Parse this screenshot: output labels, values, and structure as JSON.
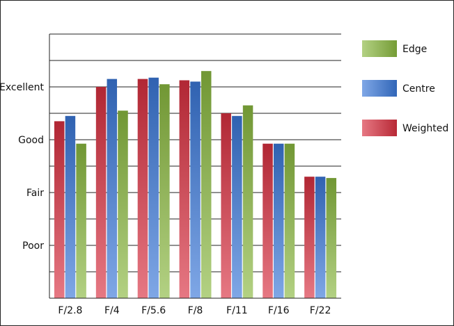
{
  "chart_data": {
    "type": "bar",
    "title": "",
    "xlabel": "",
    "ylabel": "",
    "categories": [
      "F/2.8",
      "F/4",
      "F/5.6",
      "F/8",
      "F/11",
      "F/16",
      "F/22"
    ],
    "y_ticks": [
      {
        "label": "Poor",
        "value": 2
      },
      {
        "label": "Fair",
        "value": 4
      },
      {
        "label": "Good",
        "value": 6
      },
      {
        "label": "Excellent",
        "value": 8
      }
    ],
    "ylim": [
      0,
      10
    ],
    "grid": true,
    "legend_position": "right",
    "series": [
      {
        "name": "Weighted",
        "color": "#d83040",
        "values": [
          6.7,
          8.0,
          8.3,
          8.25,
          7.0,
          5.85,
          4.6
        ]
      },
      {
        "name": "Centre",
        "color": "#3a78d8",
        "values": [
          6.9,
          8.3,
          8.35,
          8.2,
          6.9,
          5.85,
          4.6
        ]
      },
      {
        "name": "Edge",
        "color": "#8ab840",
        "values": [
          5.85,
          7.1,
          8.1,
          8.6,
          7.3,
          5.85,
          4.55
        ]
      }
    ],
    "legend_order": [
      "Edge",
      "Centre",
      "Weighted"
    ]
  }
}
